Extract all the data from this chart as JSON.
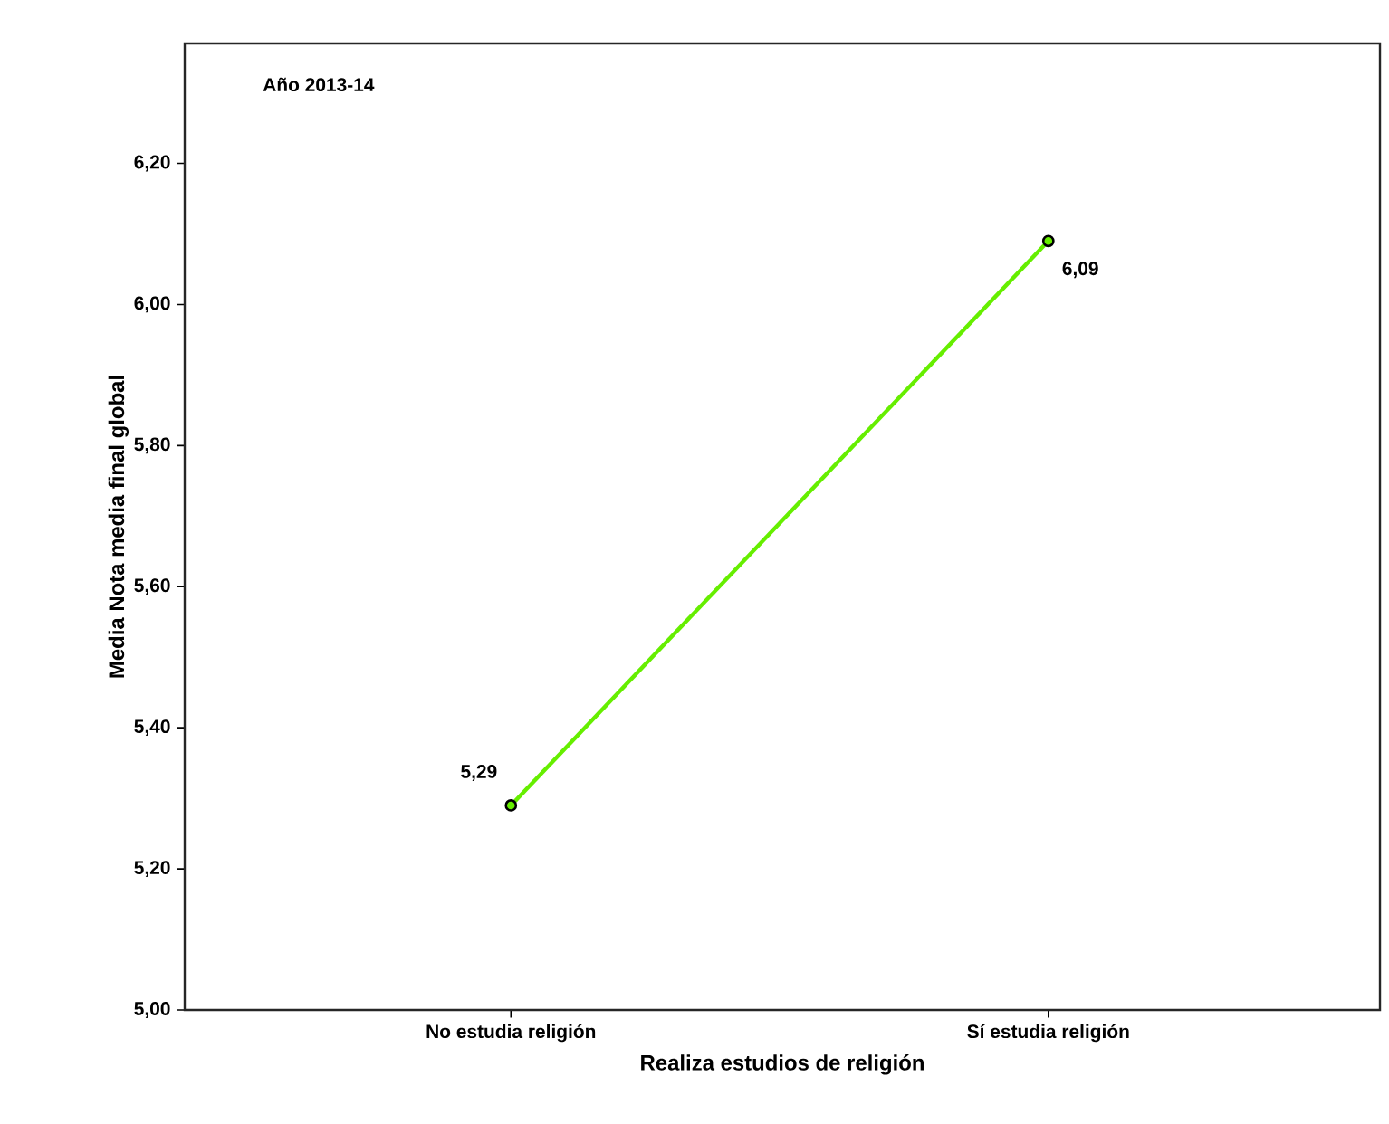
{
  "chart_data": {
    "type": "line",
    "title": "Año 2013-14",
    "xlabel": "Realiza estudios de religión",
    "ylabel": "Media Nota media final global",
    "categories": [
      "No estudia religión",
      "Sí estudia religión"
    ],
    "series": [
      {
        "color": "#66ee00",
        "values": [
          5.29,
          6.09
        ]
      }
    ],
    "ylim": [
      5.0,
      6.37
    ],
    "yticks": [
      {
        "value": 5.0,
        "label": "5,00"
      },
      {
        "value": 5.2,
        "label": "5,20"
      },
      {
        "value": 5.4,
        "label": "5,40"
      },
      {
        "value": 5.6,
        "label": "5,60"
      },
      {
        "value": 5.8,
        "label": "5,80"
      },
      {
        "value": 6.0,
        "label": "6,00"
      },
      {
        "value": 6.2,
        "label": "6,20"
      }
    ],
    "value_labels": [
      "5,29",
      "6,09"
    ],
    "marker": "circle",
    "line_style": "solid",
    "grid": false,
    "legend": false
  }
}
